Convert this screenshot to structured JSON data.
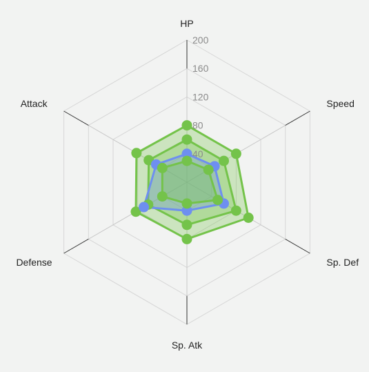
{
  "chart_data": {
    "type": "radar",
    "title": "",
    "axes": [
      "HP",
      "Speed",
      "Sp. Def",
      "Sp. Atk",
      "Defense",
      "Attack"
    ],
    "rlim": [
      0,
      200
    ],
    "ticks": [
      40,
      80,
      120,
      160,
      200
    ],
    "series": [
      {
        "values": [
          80,
          80,
          100,
          80,
          83,
          82
        ],
        "color": "#74c34a"
      },
      {
        "values": [
          60,
          60,
          80,
          60,
          63,
          62
        ],
        "color": "#74c34a"
      },
      {
        "values": [
          40,
          45,
          60,
          40,
          70,
          50
        ],
        "color": "#6e8ff0"
      },
      {
        "values": [
          30,
          35,
          50,
          30,
          40,
          40
        ],
        "color": "#74c34a"
      }
    ],
    "grid": true
  }
}
